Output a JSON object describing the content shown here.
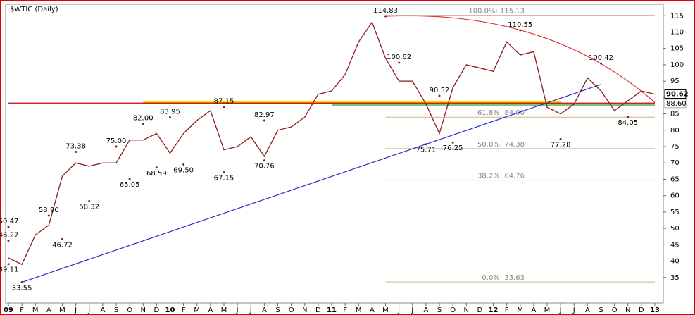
{
  "chart_data": {
    "type": "line",
    "title": "$WTIC (Daily)",
    "x": [
      "2009-01",
      "2009-02",
      "2009-03",
      "2009-04",
      "2009-05",
      "2009-06",
      "2009-07",
      "2009-08",
      "2009-09",
      "2009-10",
      "2009-11",
      "2009-12",
      "2010-01",
      "2010-02",
      "2010-03",
      "2010-04",
      "2010-05",
      "2010-06",
      "2010-07",
      "2010-08",
      "2010-09",
      "2010-10",
      "2010-11",
      "2010-12",
      "2011-01",
      "2011-02",
      "2011-03",
      "2011-04",
      "2011-05",
      "2011-06",
      "2011-07",
      "2011-08",
      "2011-09",
      "2011-10",
      "2011-11",
      "2011-12",
      "2012-01",
      "2012-02",
      "2012-03",
      "2012-04",
      "2012-05",
      "2012-06",
      "2012-07",
      "2012-08",
      "2012-09",
      "2012-10",
      "2012-11",
      "2012-12",
      "2013-01"
    ],
    "series": [
      {
        "color": "#8b1a1a",
        "values": [
          41,
          39,
          48,
          51,
          66,
          70,
          69,
          70,
          70,
          77,
          77,
          79,
          73,
          79,
          83,
          86,
          74,
          75,
          78,
          72,
          80,
          81,
          84,
          91,
          92,
          97,
          107,
          113,
          102,
          95,
          95,
          88,
          79,
          93,
          100,
          99,
          98,
          107,
          103,
          104,
          87,
          85,
          88,
          96,
          92,
          86,
          89,
          92,
          91
        ]
      }
    ],
    "xticks": [
      {
        "value": "2009-01",
        "label": "09"
      },
      {
        "value": "2009-02",
        "label": "F"
      },
      {
        "value": "2009-03",
        "label": "M"
      },
      {
        "value": "2009-04",
        "label": "A"
      },
      {
        "value": "2009-05",
        "label": "M"
      },
      {
        "value": "2009-06",
        "label": "J"
      },
      {
        "value": "2009-07",
        "label": "J"
      },
      {
        "value": "2009-08",
        "label": "A"
      },
      {
        "value": "2009-09",
        "label": "S"
      },
      {
        "value": "2009-10",
        "label": "O"
      },
      {
        "value": "2009-11",
        "label": "N"
      },
      {
        "value": "2009-12",
        "label": "D"
      },
      {
        "value": "2010-01",
        "label": "10"
      },
      {
        "value": "2010-02",
        "label": "F"
      },
      {
        "value": "2010-03",
        "label": "M"
      },
      {
        "value": "2010-04",
        "label": "A"
      },
      {
        "value": "2010-05",
        "label": "M"
      },
      {
        "value": "2010-06",
        "label": "J"
      },
      {
        "value": "2010-07",
        "label": "J"
      },
      {
        "value": "2010-08",
        "label": "A"
      },
      {
        "value": "2010-09",
        "label": "S"
      },
      {
        "value": "2010-10",
        "label": "O"
      },
      {
        "value": "2010-11",
        "label": "N"
      },
      {
        "value": "2010-12",
        "label": "D"
      },
      {
        "value": "2011-01",
        "label": "11"
      },
      {
        "value": "2011-02",
        "label": "F"
      },
      {
        "value": "2011-03",
        "label": "M"
      },
      {
        "value": "2011-04",
        "label": "A"
      },
      {
        "value": "2011-05",
        "label": "M"
      },
      {
        "value": "2011-06",
        "label": "J"
      },
      {
        "value": "2011-07",
        "label": "J"
      },
      {
        "value": "2011-08",
        "label": "A"
      },
      {
        "value": "2011-09",
        "label": "S"
      },
      {
        "value": "2011-10",
        "label": "O"
      },
      {
        "value": "2011-11",
        "label": "N"
      },
      {
        "value": "2011-12",
        "label": "D"
      },
      {
        "value": "2012-01",
        "label": "12"
      },
      {
        "value": "2012-02",
        "label": "F"
      },
      {
        "value": "2012-03",
        "label": "M"
      },
      {
        "value": "2012-04",
        "label": "A"
      },
      {
        "value": "2012-05",
        "label": "M"
      },
      {
        "value": "2012-06",
        "label": "J"
      },
      {
        "value": "2012-07",
        "label": "J"
      },
      {
        "value": "2012-08",
        "label": "A"
      },
      {
        "value": "2012-09",
        "label": "S"
      },
      {
        "value": "2012-10",
        "label": "O"
      },
      {
        "value": "2012-11",
        "label": "N"
      },
      {
        "value": "2012-12",
        "label": "D"
      },
      {
        "value": "2013-01",
        "label": "13"
      }
    ],
    "ylim": [
      27.2,
      118.5
    ],
    "yticks": [
      35,
      40,
      45,
      50,
      55,
      60,
      65,
      70,
      75,
      80,
      85,
      90,
      95,
      100,
      105,
      110,
      115
    ],
    "annotations": [
      {
        "x": "2009-01",
        "value": 50.47,
        "label": "50.47"
      },
      {
        "x": "2009-01",
        "value": 46.27,
        "label": "46.27"
      },
      {
        "x": "2009-01",
        "value": 39.11,
        "label": "39.11"
      },
      {
        "x": "2009-02",
        "value": 33.55,
        "label": "33.55"
      },
      {
        "x": "2009-04",
        "value": 53.9,
        "label": "53.90"
      },
      {
        "x": "2009-05",
        "value": 46.72,
        "label": "46.72"
      },
      {
        "x": "2009-06",
        "value": 73.38,
        "label": "73.38"
      },
      {
        "x": "2009-07",
        "value": 58.32,
        "label": "58.32"
      },
      {
        "x": "2009-09",
        "value": 75,
        "label": "75.00"
      },
      {
        "x": "2009-10",
        "value": 65.05,
        "label": "65.05"
      },
      {
        "x": "2009-11",
        "value": 82,
        "label": "82.00"
      },
      {
        "x": "2009-12",
        "value": 68.59,
        "label": "68.59"
      },
      {
        "x": "2010-01",
        "value": 83.95,
        "label": "83.95"
      },
      {
        "x": "2010-02",
        "value": 69.5,
        "label": "69.50"
      },
      {
        "x": "2010-05",
        "value": 87.15,
        "label": "87.15"
      },
      {
        "x": "2010-05",
        "value": 67.15,
        "label": "67.15"
      },
      {
        "x": "2010-08",
        "value": 82.97,
        "label": "82.97"
      },
      {
        "x": "2010-08",
        "value": 70.76,
        "label": "70.76"
      },
      {
        "x": "2011-05",
        "value": 114.83,
        "label": "114.83"
      },
      {
        "x": "2011-06",
        "value": 100.62,
        "label": "100.62"
      },
      {
        "x": "2011-09",
        "value": 90.52,
        "label": "90.52"
      },
      {
        "x": "2011-08",
        "value": 75.71,
        "label": "75.71"
      },
      {
        "x": "2011-10",
        "value": 76.25,
        "label": "76.25"
      },
      {
        "x": "2012-03",
        "value": 110.55,
        "label": "110.55"
      },
      {
        "x": "2012-06",
        "value": 77.28,
        "label": "77.28"
      },
      {
        "x": "2012-09",
        "value": 100.42,
        "label": "100.42"
      },
      {
        "x": "2012-11",
        "value": 84.05,
        "label": "84.05"
      }
    ],
    "fib_levels": [
      {
        "value": 115.13,
        "label": "100.0%: 115.13"
      },
      {
        "value": 84,
        "label": "61.8%: 84.00"
      },
      {
        "value": 74.38,
        "label": "50.0%: 74.38"
      },
      {
        "value": 64.76,
        "label": "38.2%: 64.76"
      },
      {
        "value": 33.63,
        "label": "0.0%: 33.63"
      }
    ],
    "fib_start": "2011-05",
    "fib_color": "#d2b48c",
    "levels": [
      {
        "value": 88.5,
        "from": "2009-11",
        "to": "2012-06",
        "color": "#f5d800"
      },
      {
        "value": 88.3,
        "from": "2009-01",
        "to": "2013-01",
        "color": "#cc0000"
      },
      {
        "value": 87.7,
        "from": "2011-01",
        "to": "2013-01",
        "color": "#2e9e2e"
      }
    ],
    "trendlines": [
      {
        "from": {
          "x": "2009-02",
          "value": 33.55
        },
        "to": {
          "x": "2012-09",
          "value": 94
        },
        "color": "#2a2acc"
      }
    ],
    "arc": {
      "from": {
        "x": "2011-05",
        "value": 114.83
      },
      "to": {
        "x": "2013-01",
        "value": 88.5
      },
      "color": "#e03030"
    },
    "price_labels": [
      {
        "value": 90.62,
        "label": "90.62"
      },
      {
        "value": 88.6,
        "label": "88.60"
      }
    ]
  }
}
